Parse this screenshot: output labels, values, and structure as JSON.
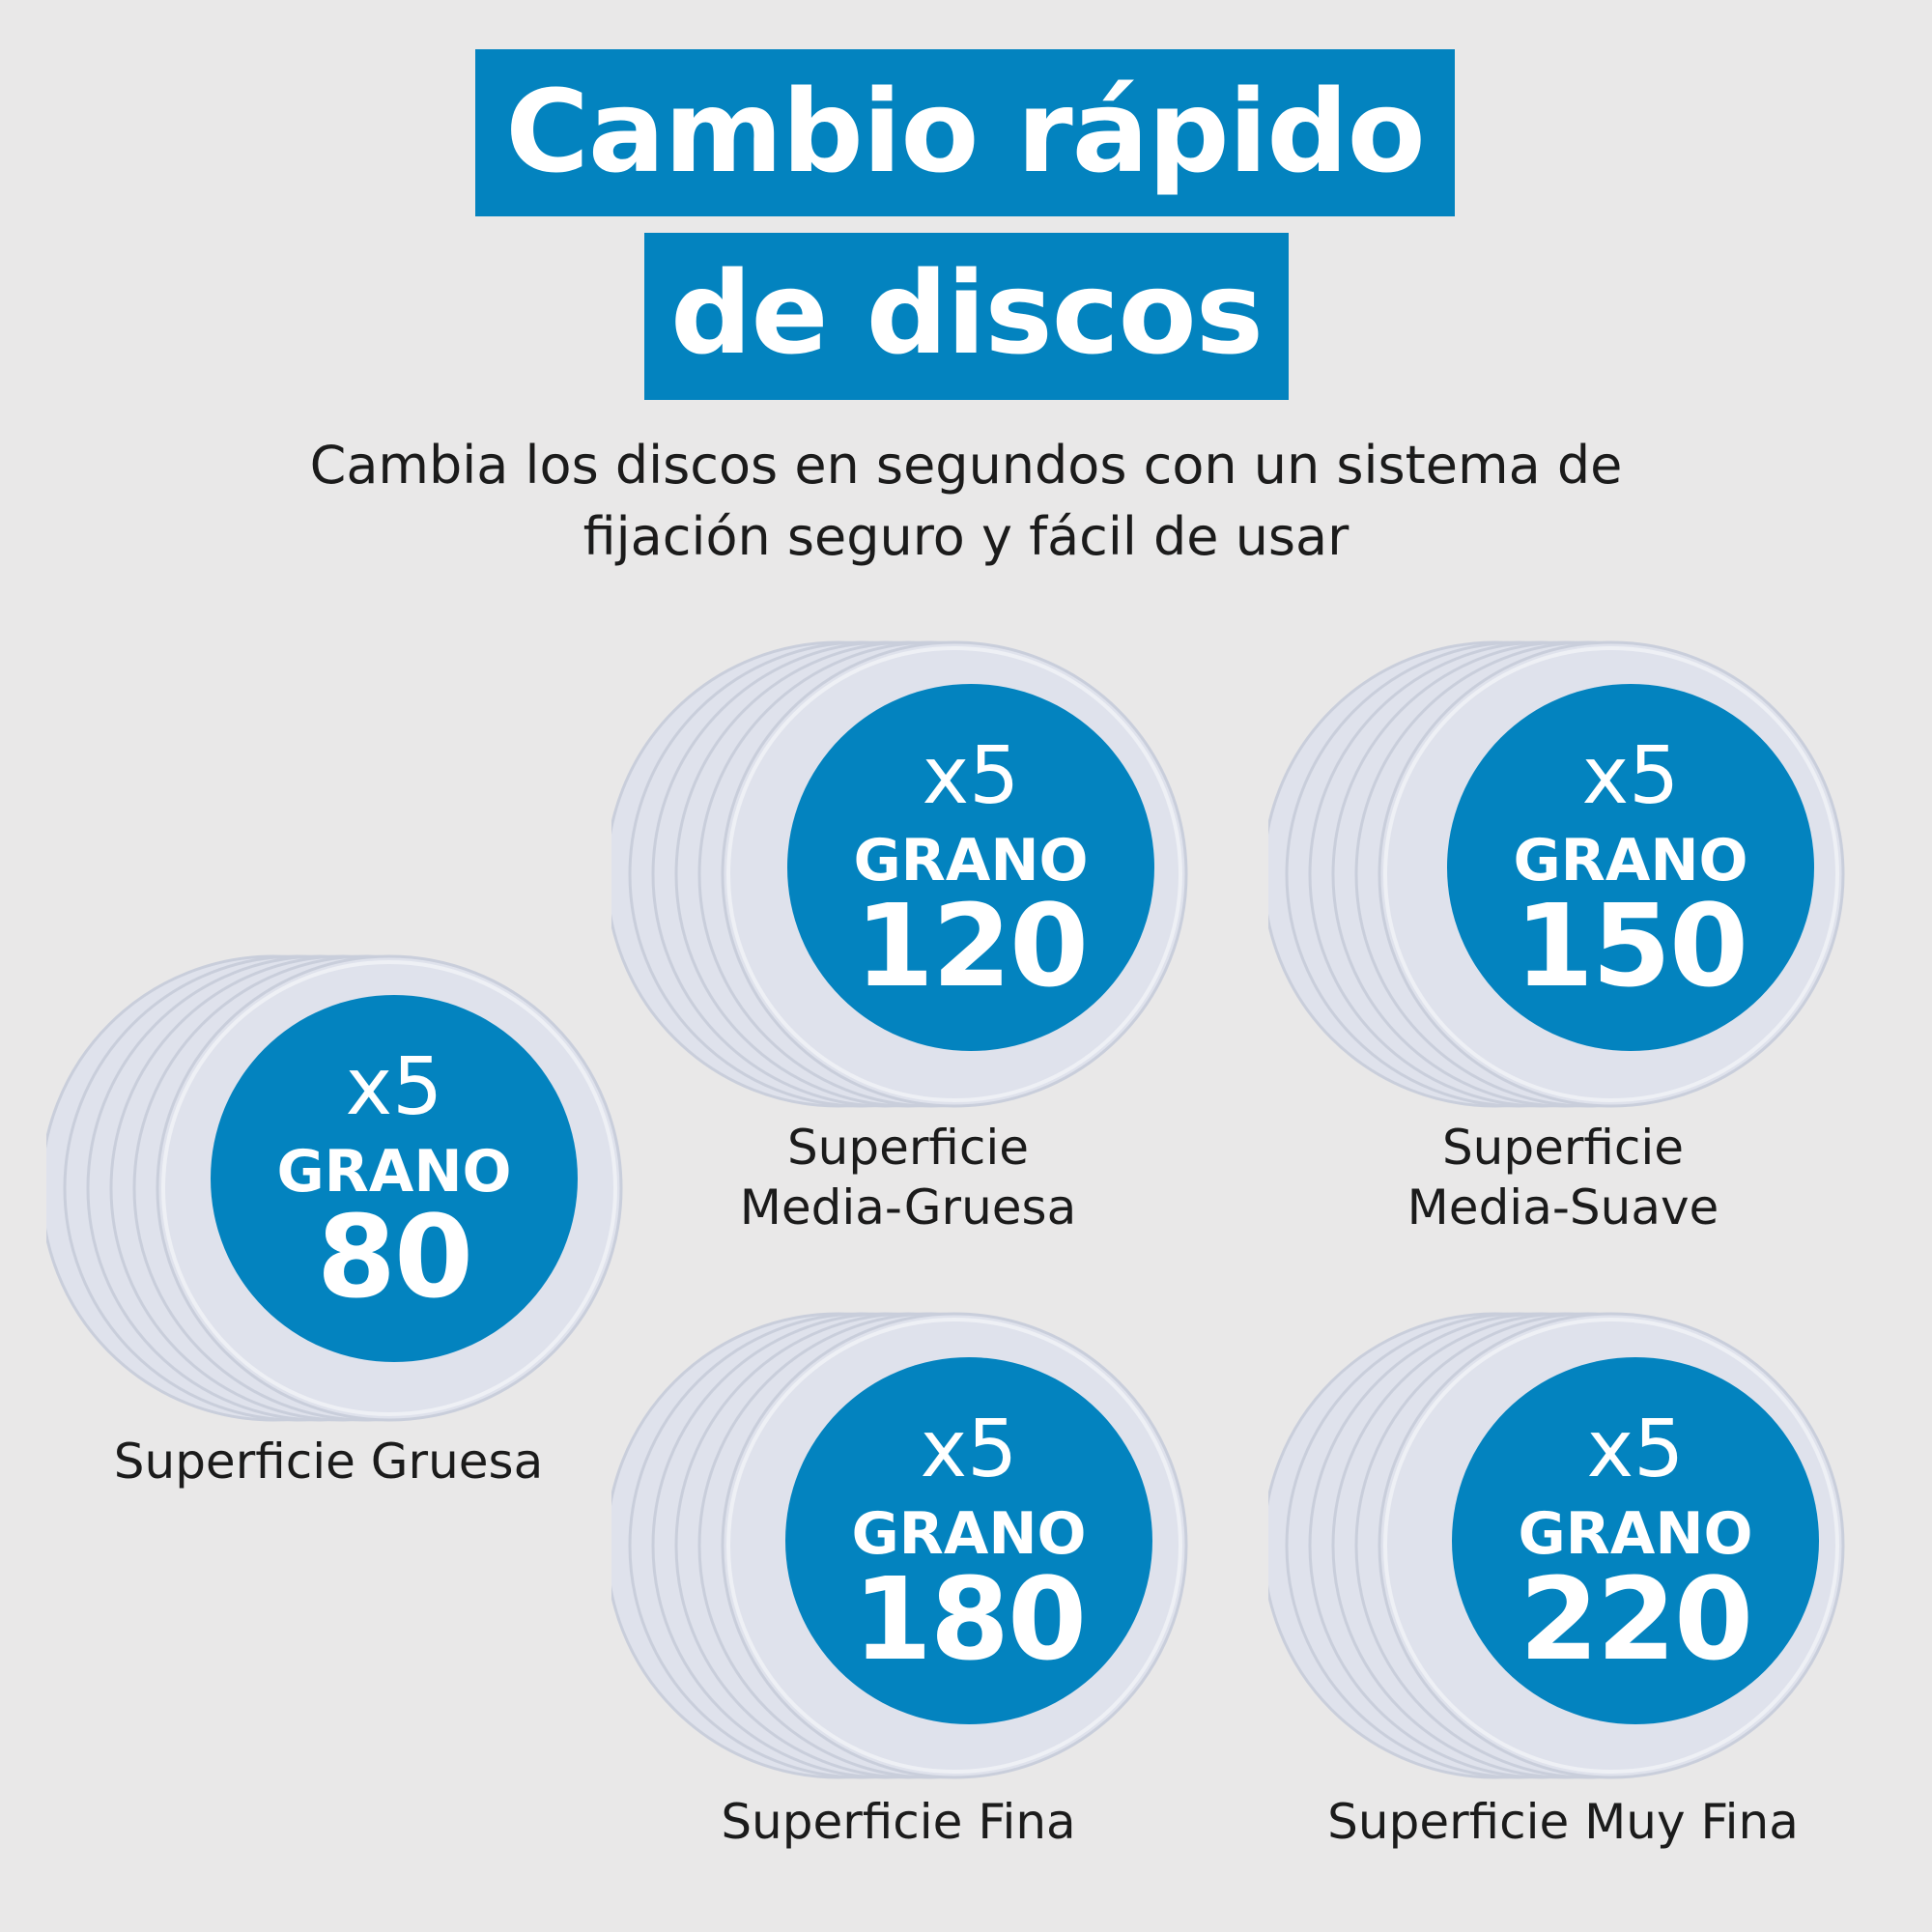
{
  "header": {
    "title_line1": "Cambio rápido",
    "title_line2": "de discos",
    "subtitle": "Cambia los discos en segundos con un sistema de fijación seguro y fácil de usar"
  },
  "colors": {
    "accent": "#0383bf",
    "background": "#e9e8e8",
    "disc": "#dfe2ec"
  },
  "products": [
    {
      "qty": "x5",
      "grano": "GRANO",
      "grit": "80",
      "label_line1": "Superficie Gruesa",
      "label_line2": ""
    },
    {
      "qty": "x5",
      "grano": "GRANO",
      "grit": "120",
      "label_line1": "Superficie",
      "label_line2": "Media-Gruesa"
    },
    {
      "qty": "x5",
      "grano": "GRANO",
      "grit": "150",
      "label_line1": "Superficie",
      "label_line2": "Media-Suave"
    },
    {
      "qty": "x5",
      "grano": "GRANO",
      "grit": "180",
      "label_line1": "Superficie Fina",
      "label_line2": ""
    },
    {
      "qty": "x5",
      "grano": "GRANO",
      "grit": "220",
      "label_line1": "Superficie Muy Fina",
      "label_line2": ""
    }
  ]
}
